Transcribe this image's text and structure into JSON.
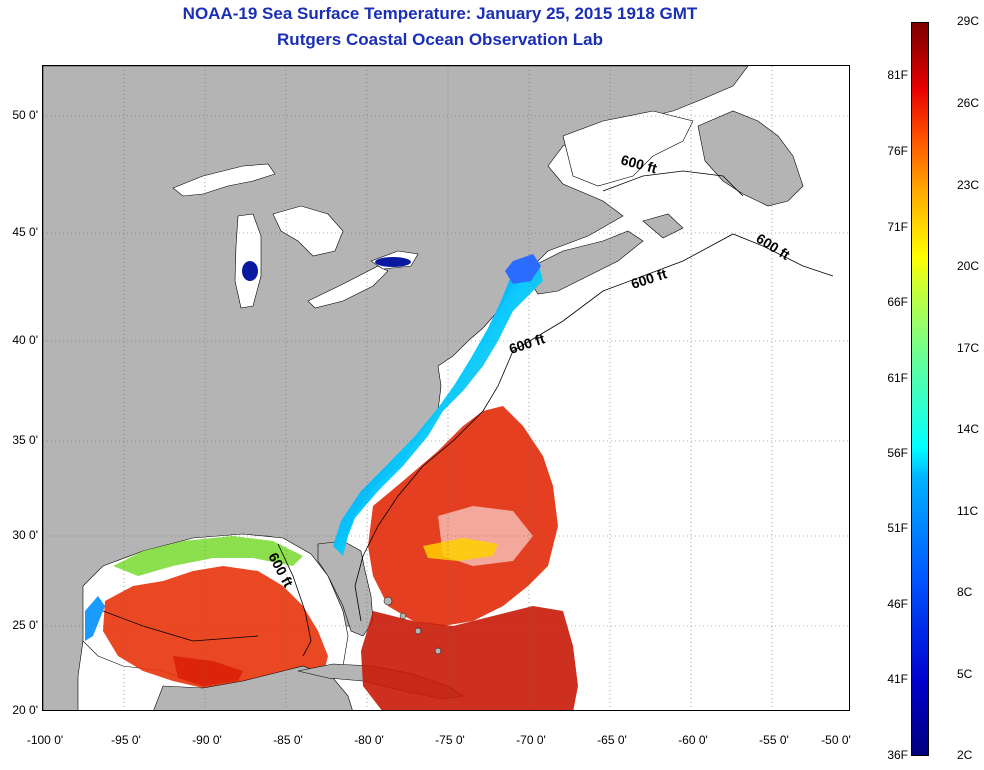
{
  "title": {
    "line1": "NOAA-19 Sea Surface Temperature:  January 25, 2015 1918 GMT",
    "line2": "Rutgers Coastal Ocean Observation Lab"
  },
  "map": {
    "lat_ticks": [
      "50 0'",
      "45 0'",
      "40 0'",
      "35 0'",
      "30 0'",
      "25 0'",
      "20 0'"
    ],
    "lon_ticks": [
      "-100 0'",
      "-95 0'",
      "-90 0'",
      "-85 0'",
      "-80 0'",
      "-75 0'",
      "-70 0'",
      "-65 0'",
      "-60 0'",
      "-55 0'",
      "-50 0'"
    ],
    "contour_labels": [
      "600 ft",
      "600 ft",
      "600 ft",
      "600 ft",
      "600 ft"
    ],
    "colors": {
      "land": "#b4b4b4",
      "ocean_no_data": "#ffffff"
    }
  },
  "colorbar": {
    "fahrenheit_labels": [
      "81F",
      "76F",
      "71F",
      "66F",
      "61F",
      "56F",
      "51F",
      "46F",
      "41F",
      "36F"
    ],
    "celsius_labels": [
      "29C",
      "26C",
      "23C",
      "20C",
      "17C",
      "14C",
      "11C",
      "8C",
      "5C",
      "2C"
    ],
    "colormap": "jet",
    "range_celsius": [
      2,
      29
    ]
  }
}
